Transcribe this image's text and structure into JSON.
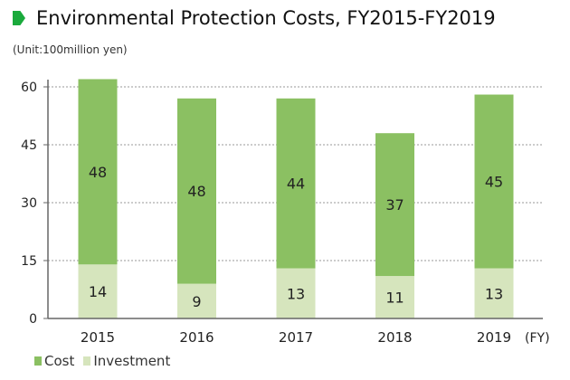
{
  "chart_data": {
    "type": "bar",
    "stacked": true,
    "title": "Environmental Protection Costs, FY2015-FY2019",
    "unit_label": "(Unit:100million yen)",
    "xlabel": "(FY)",
    "categories": [
      "2015",
      "2016",
      "2017",
      "2018",
      "2019"
    ],
    "series": [
      {
        "name": "Investment",
        "values": [
          14,
          9,
          13,
          11,
          13
        ],
        "color": "#d6e5bd"
      },
      {
        "name": "Cost",
        "values": [
          48,
          48,
          44,
          37,
          45
        ],
        "color": "#8bc062"
      }
    ],
    "ylim": [
      0,
      60
    ],
    "yticks": [
      0,
      15,
      30,
      45,
      60
    ],
    "grid": true,
    "legend": "bottom-left"
  },
  "colors": {
    "title_marker": "#1aaa3c"
  }
}
